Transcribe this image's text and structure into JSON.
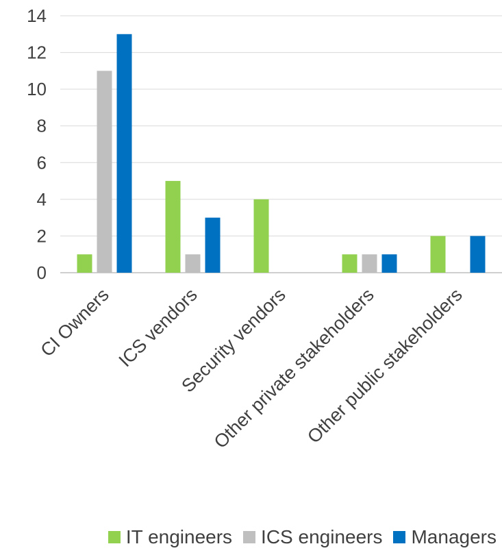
{
  "chart_data": {
    "type": "bar",
    "title": "",
    "xlabel": "",
    "ylabel": "",
    "ylim": [
      0,
      14
    ],
    "yticks": [
      0,
      2,
      4,
      6,
      8,
      10,
      12,
      14
    ],
    "grid": true,
    "legend_position": "bottom",
    "categories": [
      "CI Owners",
      "ICS vendors",
      "Security vendors",
      "Other private stakeholders",
      "Other public stakeholders"
    ],
    "series": [
      {
        "name": "IT engineers",
        "color": "#92D050",
        "values": [
          1,
          5,
          4,
          1,
          2
        ]
      },
      {
        "name": "ICS engineers",
        "color": "#BFBFBF",
        "values": [
          11,
          1,
          0,
          1,
          0
        ]
      },
      {
        "name": "Managers",
        "color": "#0070C0",
        "values": [
          13,
          3,
          0,
          1,
          2
        ]
      }
    ]
  }
}
